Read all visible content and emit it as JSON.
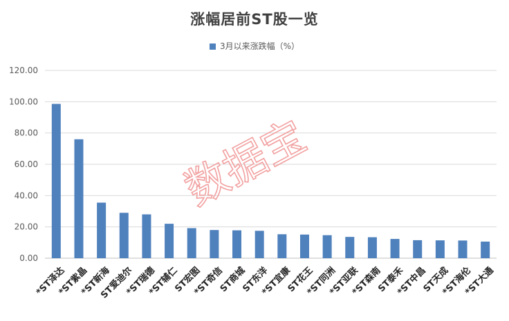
{
  "title": "涨幅居前ST股一览",
  "watermark": "数据宝",
  "colors": {
    "bar": "#4f81bd",
    "grid": "#d9d9d9",
    "watermark": "#f2a0a0"
  },
  "chart_data": {
    "type": "bar",
    "title": "涨幅居前ST股一览",
    "categories": [
      "*ST泽达",
      "*ST紫晶",
      "*ST新海",
      "ST爱迪尔",
      "*ST瑞德",
      "*ST辅仁",
      "ST宏图",
      "*ST奇信",
      "ST商城",
      "ST东洋",
      "*ST宜康",
      "ST花王",
      "*ST同洲",
      "*ST亚联",
      "*ST森南",
      "ST泰禾",
      "*ST中昌",
      "ST天成",
      "*ST海伦",
      "*ST大通"
    ],
    "series": [
      {
        "name": "3月以来涨跌幅（%）",
        "values": [
          98.6,
          76.0,
          35.5,
          29.0,
          28.0,
          22.0,
          19.2,
          18.0,
          17.8,
          17.5,
          15.3,
          15.1,
          14.7,
          13.6,
          13.4,
          12.3,
          11.5,
          11.4,
          11.3,
          10.6
        ]
      }
    ],
    "xlabel": "",
    "ylabel": "",
    "ylim": [
      0,
      120
    ],
    "yticks": [
      "0.00",
      "20.00",
      "40.00",
      "60.00",
      "80.00",
      "100.00",
      "120.00"
    ],
    "grid": true,
    "legend": "top-center"
  }
}
